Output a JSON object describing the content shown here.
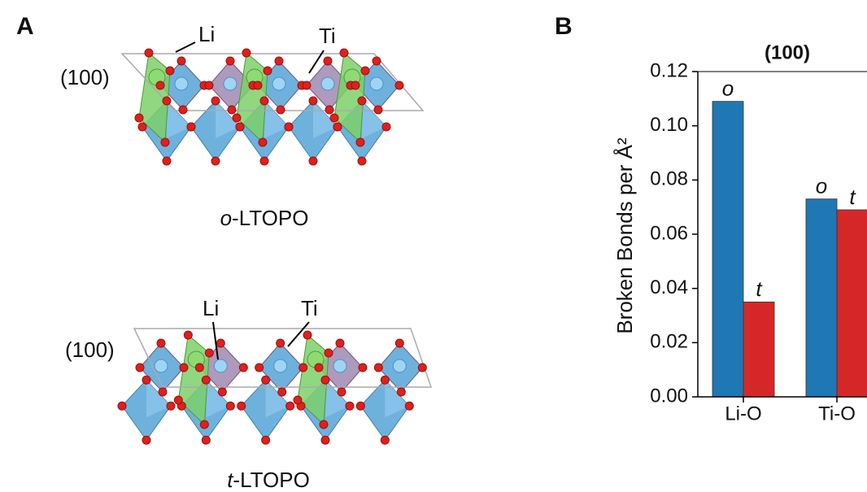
{
  "panel_a": {
    "label": "A",
    "structures": [
      {
        "plane": "(100)",
        "li_label": "Li",
        "ti_label": "Ti",
        "phase": "o",
        "compound": "-LTOPO"
      },
      {
        "plane": "(100)",
        "li_label": "Li",
        "ti_label": "Ti",
        "phase": "t",
        "compound": "-LTOPO"
      }
    ]
  },
  "chart_data": {
    "panel_label": "B",
    "type": "bar",
    "title": "(100)",
    "y_label": "Broken Bonds per Å²",
    "categories": [
      "Li-O",
      "Ti-O"
    ],
    "series": [
      {
        "name": "o",
        "color": "#1f77b4",
        "values": [
          0.109,
          0.073
        ]
      },
      {
        "name": "t",
        "color": "#d62728",
        "values": [
          0.035,
          0.069
        ]
      }
    ],
    "ylim": [
      0,
      0.12
    ],
    "yticks": [
      {
        "value": 0,
        "label": "0.00"
      },
      0.02,
      0.04,
      0.06,
      0.08,
      {
        "value": 0.1,
        "label": "0.10"
      },
      0.12
    ]
  }
}
